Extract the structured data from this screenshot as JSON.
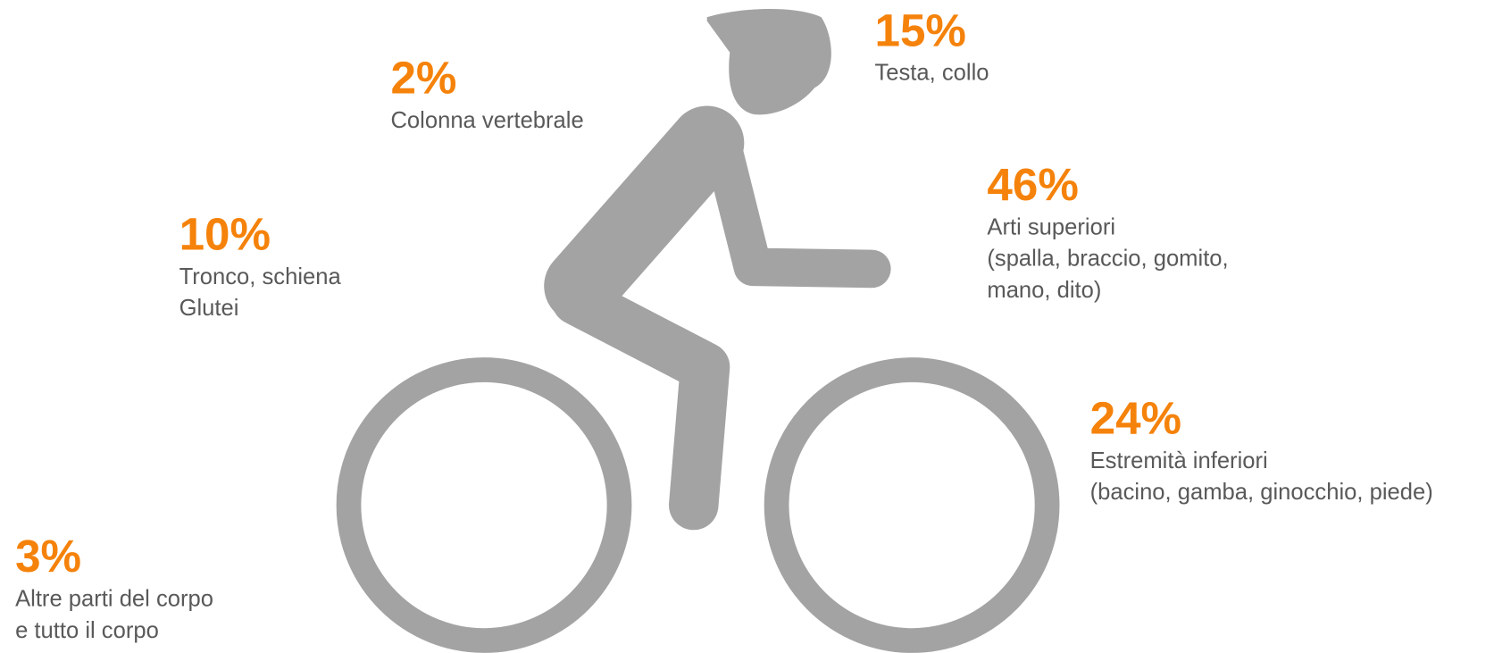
{
  "items": [
    {
      "value": "15%",
      "lines": [
        "Testa, collo"
      ]
    },
    {
      "value": "2%",
      "lines": [
        "Colonna vertebrale"
      ]
    },
    {
      "value": "10%",
      "lines": [
        "Tronco, schiena",
        "Glutei"
      ]
    },
    {
      "value": "46%",
      "lines": [
        "Arti superiori",
        "(spalla, braccio, gomito,",
        "mano, dito)"
      ]
    },
    {
      "value": "24%",
      "lines": [
        "Estremità inferiori",
        "(bacino, gamba, ginocchio, piede)"
      ]
    },
    {
      "value": "3%",
      "lines": [
        "Altre parti del corpo",
        "e tutto il corpo"
      ]
    }
  ]
}
